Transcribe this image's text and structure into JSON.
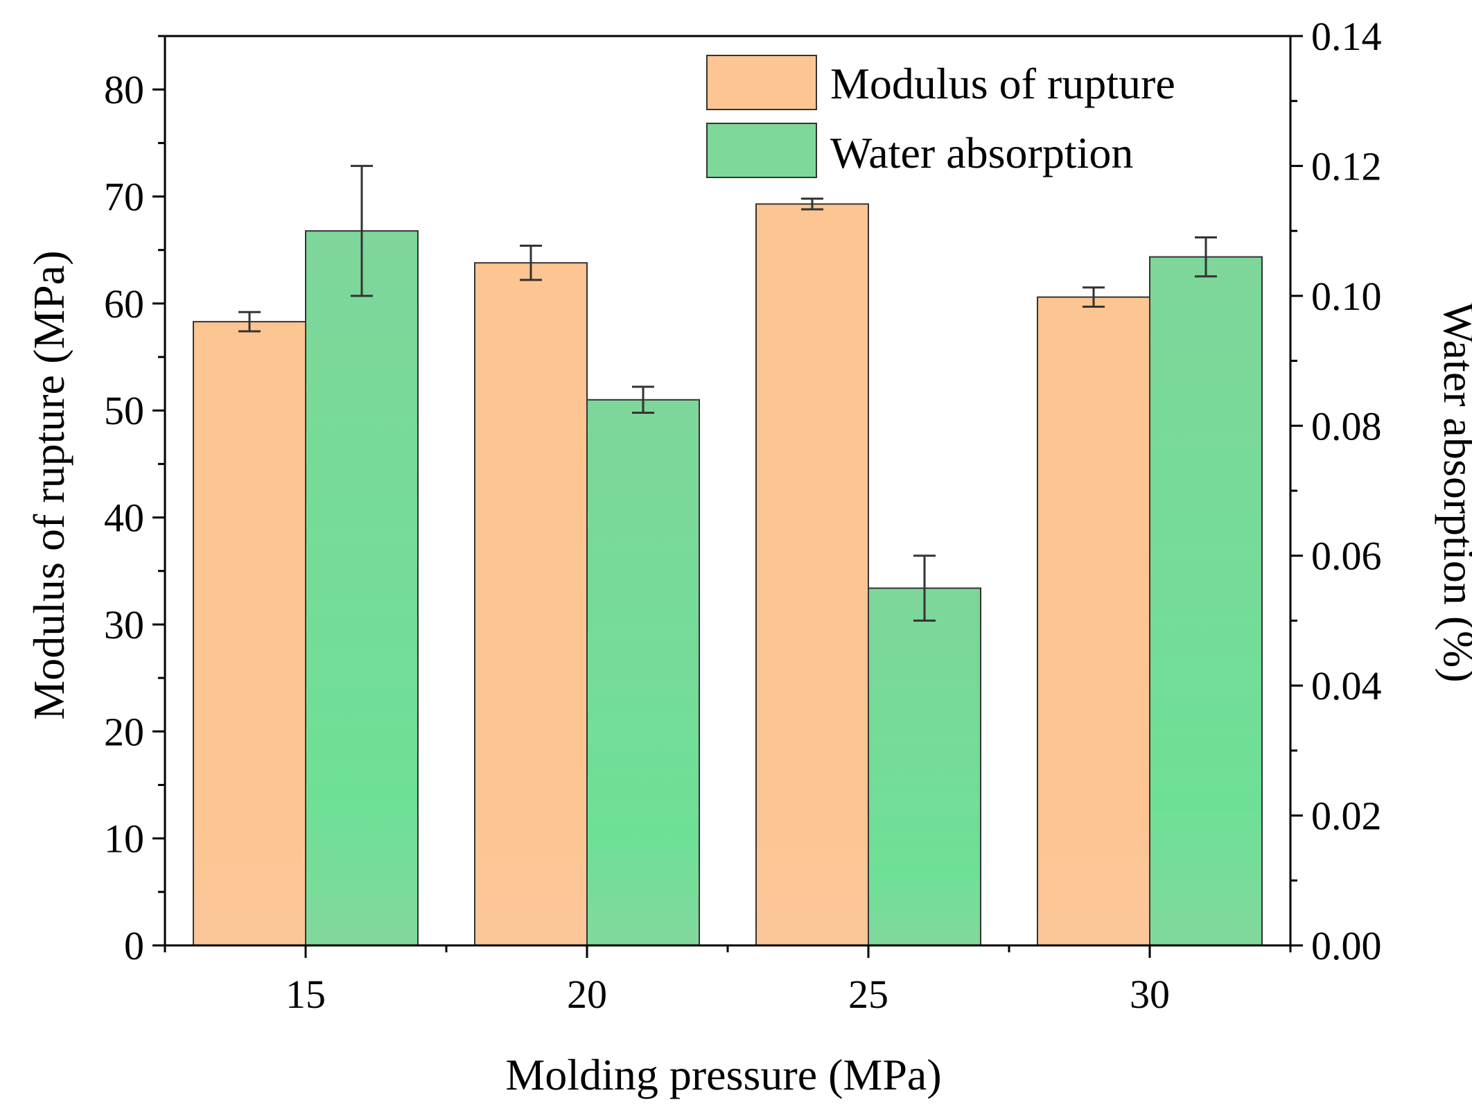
{
  "chart_data": {
    "type": "bar",
    "title": "",
    "xlabel": "Molding pressure (MPa)",
    "ylabel": "Modulus of rupture (MPa)",
    "y2label": "Water absorption (%)",
    "categories": [
      "15",
      "20",
      "25",
      "30"
    ],
    "ylim": [
      0,
      85
    ],
    "y2lim": [
      0,
      0.14
    ],
    "yticks": [
      "0",
      "10",
      "20",
      "30",
      "40",
      "50",
      "60",
      "70",
      "80"
    ],
    "y2ticks": [
      "0.00",
      "0.02",
      "0.04",
      "0.06",
      "0.08",
      "0.10",
      "0.12",
      "0.14"
    ],
    "legend_position": "top-right",
    "series": [
      {
        "name": "Modulus of rupture",
        "axis": "left",
        "color": "#fdc592",
        "values": [
          58.3,
          63.8,
          69.3,
          60.6
        ],
        "errors": [
          0.9,
          1.6,
          0.5,
          0.9
        ]
      },
      {
        "name": "Water absorption",
        "axis": "right",
        "color": "#7dd89a",
        "values": [
          0.11,
          0.084,
          0.055,
          0.106
        ],
        "errors": [
          0.01,
          0.002,
          0.005,
          0.003
        ]
      }
    ]
  }
}
